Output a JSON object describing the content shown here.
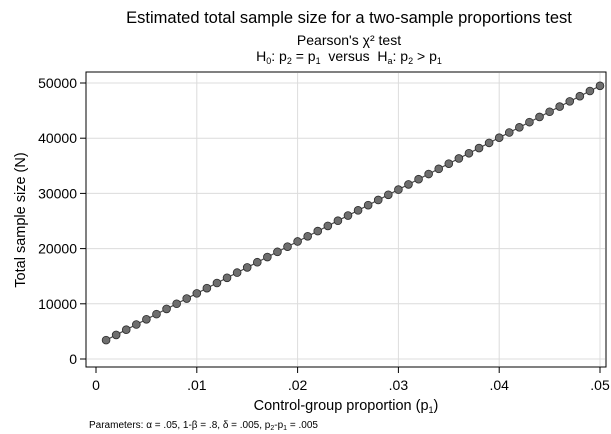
{
  "chart_data": {
    "type": "scatter",
    "connected": true,
    "title": "Estimated total sample size for a two-sample proportions test",
    "subtitle_line1": "Pearson's χ² test",
    "subtitle_line2": {
      "h0_prefix": "H",
      "h0_sub": "0",
      "h0_text_a": ": p",
      "h0_p2_sub": "2",
      "h0_eq": " = p",
      "h0_p1_sub": "1",
      "versus": "  versus  ",
      "ha_prefix": "H",
      "ha_sub": "a",
      "ha_text_a": ": p",
      "ha_p2_sub": "2",
      "ha_gt": " > p",
      "ha_p1_sub": "1"
    },
    "xlabel": {
      "text": "Control-group proportion (p",
      "sub": "1",
      "close": ")"
    },
    "ylabel": "Total sample size (N)",
    "xlim": [
      0,
      0.05
    ],
    "ylim": [
      0,
      50000
    ],
    "x_ticks": [
      {
        "value": 0,
        "label": "0"
      },
      {
        "value": 0.01,
        "label": ".01"
      },
      {
        "value": 0.02,
        "label": ".02"
      },
      {
        "value": 0.03,
        "label": ".03"
      },
      {
        "value": 0.04,
        "label": ".04"
      },
      {
        "value": 0.05,
        "label": ".05"
      }
    ],
    "y_ticks": [
      {
        "value": 0,
        "label": "0"
      },
      {
        "value": 10000,
        "label": "10000"
      },
      {
        "value": 20000,
        "label": "20000"
      },
      {
        "value": 30000,
        "label": "30000"
      },
      {
        "value": 40000,
        "label": "40000"
      },
      {
        "value": 50000,
        "label": "50000"
      }
    ],
    "grid": true,
    "series": [
      {
        "x": [
          0.001,
          0.002,
          0.003,
          0.004,
          0.005,
          0.006,
          0.007,
          0.008,
          0.009,
          0.01,
          0.011,
          0.012,
          0.013,
          0.014,
          0.015,
          0.016,
          0.017,
          0.018,
          0.019,
          0.02,
          0.021,
          0.022,
          0.023,
          0.024,
          0.025,
          0.026,
          0.027,
          0.028,
          0.029,
          0.03,
          0.031,
          0.032,
          0.033,
          0.034,
          0.035,
          0.036,
          0.037,
          0.038,
          0.039,
          0.04,
          0.041,
          0.042,
          0.043,
          0.044,
          0.045,
          0.046,
          0.047,
          0.048,
          0.049,
          0.05
        ],
        "y": [
          3420,
          4360,
          5310,
          6250,
          7190,
          8130,
          9070,
          10010,
          10950,
          11890,
          12830,
          13770,
          14710,
          15650,
          16590,
          17530,
          18470,
          19410,
          20350,
          21290,
          22230,
          23170,
          24110,
          25050,
          25990,
          26930,
          27870,
          28810,
          29750,
          30690,
          31630,
          32570,
          33510,
          34450,
          35390,
          36330,
          37270,
          38210,
          39150,
          40090,
          41030,
          41970,
          42910,
          43850,
          44790,
          45730,
          46670,
          47610,
          48550,
          49490
        ],
        "marker_color": "#6e6e6e",
        "marker_edge": "#2b2b2b",
        "line_color": "#4a4a4a"
      }
    ],
    "note": {
      "prefix": "Parameters: α = .05, 1-β = .8, δ = .005, p",
      "sub_a": "2",
      "mid": "-p",
      "sub_b": "1",
      "suffix": " = .005"
    },
    "colors": {
      "grid": "#dcdcdc",
      "axis": "#000000",
      "background": "#ffffff"
    }
  }
}
